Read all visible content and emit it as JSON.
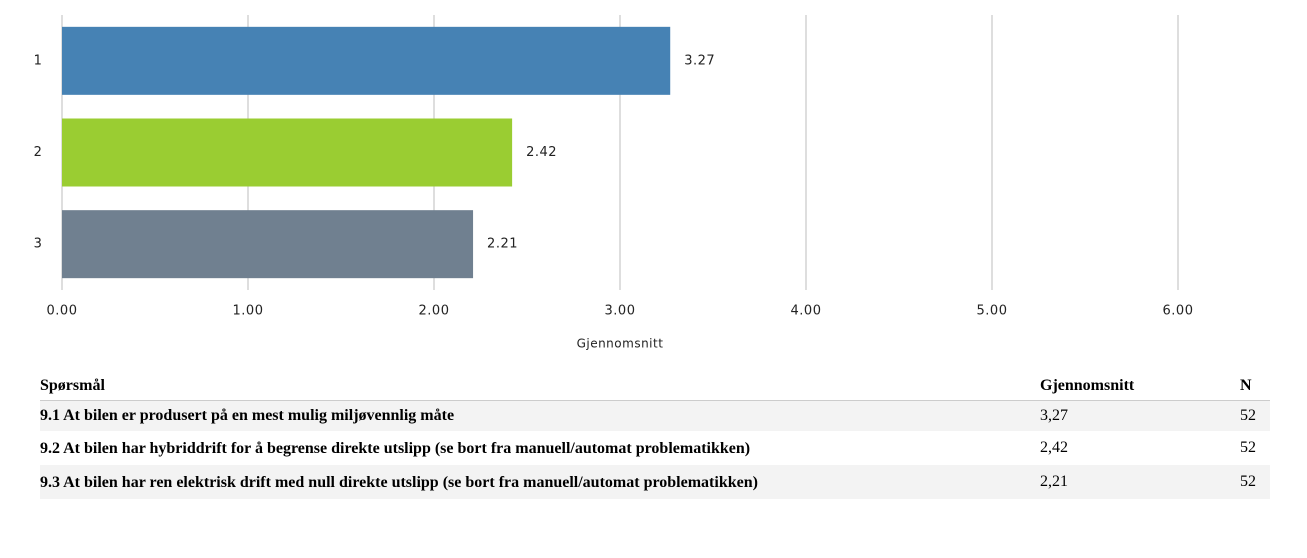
{
  "chart_data": {
    "type": "barh",
    "categories": [
      "1",
      "2",
      "3"
    ],
    "values": [
      3.27,
      2.42,
      2.21
    ],
    "colors": [
      "#4682b4",
      "#9acd32",
      "#708090"
    ],
    "xlabel": "Gjennomsnitt",
    "xlim": [
      0,
      6
    ],
    "xticks": [
      {
        "value": 0,
        "label": "0.00"
      },
      {
        "value": 1,
        "label": "1.00"
      },
      {
        "value": 2,
        "label": "2.00"
      },
      {
        "value": 3,
        "label": "3.00"
      },
      {
        "value": 4,
        "label": "4.00"
      },
      {
        "value": 5,
        "label": "5.00"
      },
      {
        "value": 6,
        "label": "6.00"
      }
    ],
    "grid": true
  },
  "table": {
    "header": [
      "Spørsmål",
      "Gjennomsnitt",
      "N"
    ],
    "rows": [
      [
        "9.1 At bilen er produsert på en mest mulig miljøvennlig måte",
        "3,27",
        "52"
      ],
      [
        "9.2 At bilen har hybriddrift for å begrense direkte utslipp (se bort fra manuell/automat problematikken)",
        "2,42",
        "52"
      ],
      [
        "9.3 At bilen har ren elektrisk drift med null direkte utslipp (se bort fra manuell/automat problematikken)",
        "2,21",
        "52"
      ]
    ]
  }
}
